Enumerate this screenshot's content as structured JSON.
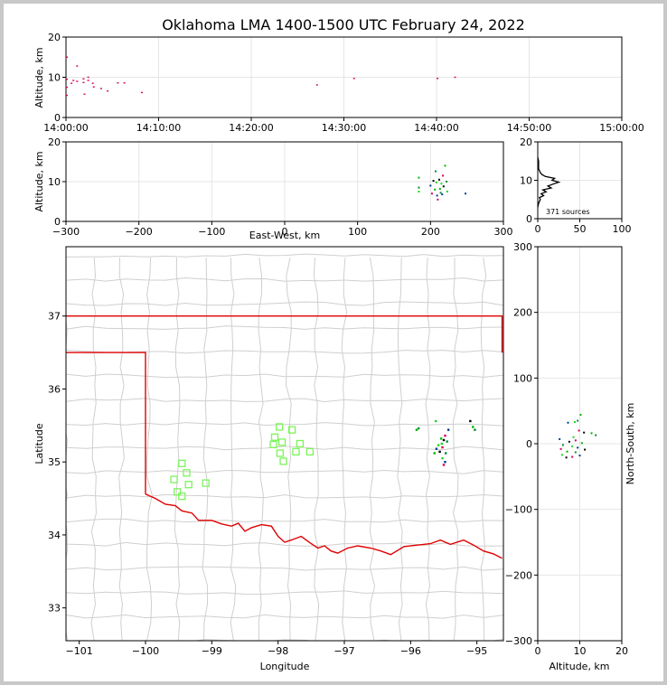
{
  "chart_data": [
    {
      "type": "scatter",
      "panel": "altitude-vs-time",
      "title": "Oklahoma LMA 1400-1500 UTC February 24, 2022",
      "xlabel": "",
      "ylabel": "Altitude, km",
      "x_ticks": [
        "14:00:00",
        "14:10:00",
        "14:20:00",
        "14:30:00",
        "14:40:00",
        "14:50:00",
        "15:00:00"
      ],
      "y_ticks": [
        "0",
        "10",
        "20"
      ],
      "xlim_minutes": [
        0,
        60
      ],
      "ylim": [
        0,
        20
      ],
      "grid": true,
      "points": [
        {
          "x": 0.1,
          "y": 15.0
        },
        {
          "x": 0.1,
          "y": 9.5
        },
        {
          "x": 0.1,
          "y": 7.5
        },
        {
          "x": 0.1,
          "y": 5.5
        },
        {
          "x": 0.6,
          "y": 8.5
        },
        {
          "x": 0.8,
          "y": 9.2
        },
        {
          "x": 1.2,
          "y": 12.8
        },
        {
          "x": 1.2,
          "y": 9.0
        },
        {
          "x": 1.9,
          "y": 9.6
        },
        {
          "x": 1.9,
          "y": 8.7
        },
        {
          "x": 2.0,
          "y": 5.8
        },
        {
          "x": 2.4,
          "y": 10.0
        },
        {
          "x": 2.4,
          "y": 9.2
        },
        {
          "x": 2.9,
          "y": 8.5
        },
        {
          "x": 3.0,
          "y": 7.6
        },
        {
          "x": 3.8,
          "y": 7.2
        },
        {
          "x": 4.5,
          "y": 6.6
        },
        {
          "x": 5.6,
          "y": 8.6
        },
        {
          "x": 6.3,
          "y": 8.6
        },
        {
          "x": 8.2,
          "y": 6.2
        },
        {
          "x": 27.1,
          "y": 8.1
        },
        {
          "x": 31.1,
          "y": 9.7
        },
        {
          "x": 40.1,
          "y": 9.7
        },
        {
          "x": 42.0,
          "y": 10.0
        }
      ]
    },
    {
      "type": "scatter",
      "panel": "altitude-vs-east-west",
      "xlabel": "East-West, km",
      "ylabel": "Altitude, km",
      "x_ticks": [
        "−300",
        "−200",
        "−100",
        "0",
        "100",
        "200",
        "300"
      ],
      "y_ticks": [
        "0",
        "10",
        "20"
      ],
      "xlim": [
        -300,
        300
      ],
      "ylim": [
        0,
        20
      ],
      "grid": true,
      "points": [
        {
          "x": 184,
          "y": 11.0
        },
        {
          "x": 184,
          "y": 8.5
        },
        {
          "x": 184,
          "y": 7.5
        },
        {
          "x": 200,
          "y": 9.0
        },
        {
          "x": 202,
          "y": 7.0
        },
        {
          "x": 204,
          "y": 10.2
        },
        {
          "x": 206,
          "y": 8.0
        },
        {
          "x": 207,
          "y": 12.6
        },
        {
          "x": 208,
          "y": 9.8
        },
        {
          "x": 209,
          "y": 6.5
        },
        {
          "x": 210,
          "y": 5.5
        },
        {
          "x": 212,
          "y": 10.5
        },
        {
          "x": 213,
          "y": 8.2
        },
        {
          "x": 214,
          "y": 7.2
        },
        {
          "x": 215,
          "y": 9.5
        },
        {
          "x": 216,
          "y": 6.8
        },
        {
          "x": 217,
          "y": 11.5
        },
        {
          "x": 218,
          "y": 8.8
        },
        {
          "x": 220,
          "y": 14.0
        },
        {
          "x": 222,
          "y": 10.0
        },
        {
          "x": 223,
          "y": 7.5
        },
        {
          "x": 248,
          "y": 7.0
        }
      ]
    },
    {
      "type": "line",
      "panel": "altitude-histogram",
      "annotation": "371 sources",
      "x_ticks": [
        "0",
        "50",
        "100"
      ],
      "y_ticks": [
        "0",
        "10",
        "20"
      ],
      "xlim": [
        0,
        100
      ],
      "ylim": [
        0,
        20
      ],
      "grid": true,
      "altitude_km": [
        3,
        4,
        5,
        5.5,
        6,
        6.5,
        7,
        7.5,
        8,
        8.5,
        9,
        9.5,
        10,
        10.5,
        11,
        11.5,
        12,
        12.5,
        13,
        14,
        15,
        16
      ],
      "count": [
        0,
        1,
        3,
        2,
        7,
        4,
        10,
        6,
        16,
        12,
        18,
        25,
        17,
        20,
        9,
        5,
        3,
        2,
        1,
        1,
        1,
        0
      ]
    },
    {
      "type": "scatter",
      "panel": "plan-view-map",
      "xlabel": "Longitude",
      "ylabel": "Latitude",
      "x_ticks": [
        "−101",
        "−100",
        "−99",
        "−98",
        "−97",
        "−96",
        "−95"
      ],
      "y_ticks": [
        "33",
        "34",
        "35",
        "36",
        "37"
      ],
      "xlim": [
        -101.2,
        -94.6
      ],
      "ylim": [
        32.55,
        37.95
      ],
      "stations": [
        {
          "lon": -99.45,
          "lat": 34.98
        },
        {
          "lon": -99.38,
          "lat": 34.85
        },
        {
          "lon": -99.57,
          "lat": 34.76
        },
        {
          "lon": -99.35,
          "lat": 34.69
        },
        {
          "lon": -99.09,
          "lat": 34.71
        },
        {
          "lon": -99.52,
          "lat": 34.59
        },
        {
          "lon": -99.45,
          "lat": 34.53
        },
        {
          "lon": -97.98,
          "lat": 35.48
        },
        {
          "lon": -97.79,
          "lat": 35.44
        },
        {
          "lon": -98.05,
          "lat": 35.34
        },
        {
          "lon": -97.94,
          "lat": 35.27
        },
        {
          "lon": -98.07,
          "lat": 35.24
        },
        {
          "lon": -97.67,
          "lat": 35.25
        },
        {
          "lon": -97.97,
          "lat": 35.12
        },
        {
          "lon": -97.73,
          "lat": 35.14
        },
        {
          "lon": -97.52,
          "lat": 35.14
        },
        {
          "lon": -97.92,
          "lat": 35.01
        }
      ],
      "sources": [
        {
          "lon": -95.91,
          "lat": 35.44
        },
        {
          "lon": -95.88,
          "lat": 35.46
        },
        {
          "lon": -95.62,
          "lat": 35.56
        },
        {
          "lon": -95.43,
          "lat": 35.44
        },
        {
          "lon": -95.48,
          "lat": 35.36
        },
        {
          "lon": -95.5,
          "lat": 35.3
        },
        {
          "lon": -95.54,
          "lat": 35.32
        },
        {
          "lon": -95.45,
          "lat": 35.28
        },
        {
          "lon": -95.58,
          "lat": 35.23
        },
        {
          "lon": -95.61,
          "lat": 35.18
        },
        {
          "lon": -95.52,
          "lat": 35.2
        },
        {
          "lon": -95.56,
          "lat": 35.14
        },
        {
          "lon": -95.64,
          "lat": 35.12
        },
        {
          "lon": -95.47,
          "lat": 35.12
        },
        {
          "lon": -95.52,
          "lat": 35.05
        },
        {
          "lon": -95.48,
          "lat": 35.0
        },
        {
          "lon": -95.5,
          "lat": 34.96
        },
        {
          "lon": -95.1,
          "lat": 35.56
        },
        {
          "lon": -95.06,
          "lat": 35.48
        },
        {
          "lon": -95.03,
          "lat": 35.44
        },
        {
          "lon": -95.53,
          "lat": 35.25
        }
      ]
    },
    {
      "type": "scatter",
      "panel": "north-south-vs-altitude",
      "xlabel": "Altitude, km",
      "ylabel": "North-South, km",
      "x_ticks": [
        "0",
        "10",
        "20"
      ],
      "y_ticks": [
        "−300",
        "−200",
        "−100",
        "0",
        "100",
        "200",
        "300"
      ],
      "xlim": [
        0,
        20
      ],
      "ylim": [
        -300,
        300
      ],
      "grid": true,
      "points": [
        {
          "x": 10.2,
          "y": 44
        },
        {
          "x": 9.5,
          "y": 35
        },
        {
          "x": 8.8,
          "y": 33
        },
        {
          "x": 7.2,
          "y": 32
        },
        {
          "x": 9.8,
          "y": 20
        },
        {
          "x": 11.0,
          "y": 17
        },
        {
          "x": 12.8,
          "y": 16
        },
        {
          "x": 13.8,
          "y": 13
        },
        {
          "x": 8.5,
          "y": 10
        },
        {
          "x": 5.2,
          "y": 7
        },
        {
          "x": 9.0,
          "y": 5
        },
        {
          "x": 7.5,
          "y": 3
        },
        {
          "x": 10.5,
          "y": 1
        },
        {
          "x": 6.0,
          "y": -2
        },
        {
          "x": 8.2,
          "y": -4
        },
        {
          "x": 9.5,
          "y": -6
        },
        {
          "x": 5.5,
          "y": -8
        },
        {
          "x": 11.2,
          "y": -9
        },
        {
          "x": 7.0,
          "y": -12
        },
        {
          "x": 9.0,
          "y": -13
        },
        {
          "x": 5.8,
          "y": -17
        },
        {
          "x": 10.0,
          "y": -18
        },
        {
          "x": 8.2,
          "y": -20
        },
        {
          "x": 6.8,
          "y": -21
        }
      ]
    }
  ]
}
